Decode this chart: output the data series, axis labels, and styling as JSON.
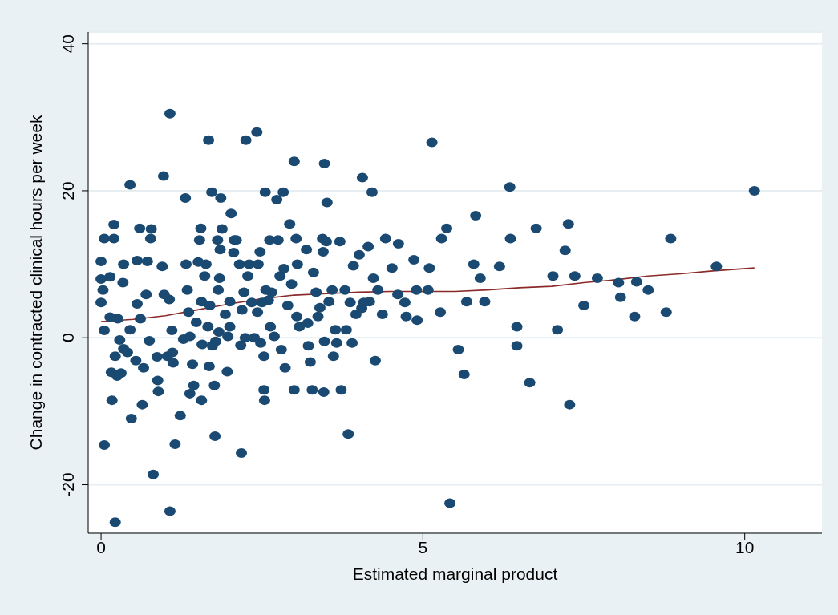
{
  "chart_data": {
    "type": "scatter",
    "xlabel": "Estimated marginal product",
    "ylabel": "Change in contracted clinical hours per week",
    "xlim": [
      -0.2,
      11.2
    ],
    "ylim": [
      -26.6,
      41.6
    ],
    "xticks": [
      0,
      5,
      10
    ],
    "yticks": [
      -20,
      0,
      20,
      40
    ],
    "grid": "y",
    "marker": "circle",
    "series": [
      {
        "color": "#1a4a72",
        "x": [
          0.05,
          0.22,
          0.0,
          0.0,
          0.05,
          0.03,
          0.0,
          0.05,
          0.2,
          0.2,
          0.14,
          0.14,
          0.26,
          0.16,
          0.17,
          0.22,
          0.25,
          0.31,
          0.29,
          0.35,
          0.41,
          0.34,
          0.35,
          0.45,
          0.47,
          0.45,
          0.54,
          0.56,
          0.56,
          0.61,
          0.6,
          0.64,
          0.66,
          0.7,
          0.72,
          0.75,
          0.77,
          0.78,
          0.81,
          0.87,
          0.88,
          0.89,
          0.95,
          0.97,
          0.98,
          1.03,
          1.06,
          1.07,
          1.07,
          1.1,
          1.11,
          1.12,
          1.15,
          1.23,
          1.28,
          1.31,
          1.32,
          1.34,
          1.36,
          1.38,
          1.38,
          1.42,
          1.44,
          1.48,
          1.51,
          1.53,
          1.55,
          1.56,
          1.56,
          1.57,
          1.61,
          1.63,
          1.66,
          1.67,
          1.68,
          1.69,
          1.72,
          1.73,
          1.76,
          1.77,
          1.78,
          1.81,
          1.82,
          1.83,
          1.84,
          1.85,
          1.86,
          1.88,
          1.93,
          1.96,
          1.97,
          2.0,
          2.0,
          2.02,
          2.06,
          2.07,
          2.1,
          2.15,
          2.17,
          2.18,
          2.19,
          2.22,
          2.24,
          2.25,
          2.28,
          2.3,
          2.34,
          2.38,
          2.42,
          2.43,
          2.44,
          2.47,
          2.48,
          2.5,
          2.53,
          2.53,
          2.54,
          2.55,
          2.56,
          2.6,
          2.62,
          2.63,
          2.65,
          2.69,
          2.73,
          2.75,
          2.78,
          2.8,
          2.83,
          2.84,
          2.86,
          2.9,
          2.93,
          2.96,
          3.0,
          3.0,
          3.03,
          3.04,
          3.05,
          3.08,
          3.19,
          3.21,
          3.22,
          3.25,
          3.28,
          3.3,
          3.34,
          3.37,
          3.4,
          3.44,
          3.45,
          3.46,
          3.47,
          3.47,
          3.5,
          3.51,
          3.54,
          3.59,
          3.61,
          3.64,
          3.66,
          3.71,
          3.73,
          3.79,
          3.81,
          3.84,
          3.87,
          3.9,
          3.92,
          3.96,
          4.01,
          4.05,
          4.06,
          4.08,
          4.15,
          4.17,
          4.21,
          4.23,
          4.26,
          4.3,
          4.37,
          4.42,
          4.52,
          4.61,
          4.62,
          4.72,
          4.74,
          4.86,
          4.9,
          4.91,
          5.08,
          5.1,
          5.14,
          5.27,
          5.29,
          5.37,
          5.42,
          5.55,
          5.64,
          5.68,
          5.79,
          5.82,
          5.89,
          5.96,
          6.19,
          6.35,
          6.36,
          6.46,
          6.46,
          6.66,
          6.76,
          7.02,
          7.09,
          7.21,
          7.26,
          7.28,
          7.36,
          7.5,
          7.71,
          8.04,
          8.07,
          8.29,
          8.32,
          8.5,
          8.78,
          8.85,
          9.56,
          10.15
        ],
        "values": [
          -14.6,
          -25.1,
          4.8,
          10.4,
          13.5,
          6.5,
          8.0,
          1.0,
          13.5,
          15.4,
          8.3,
          2.8,
          2.6,
          -4.7,
          -8.5,
          -2.5,
          -5.2,
          -4.8,
          -0.3,
          -1.5,
          -2.0,
          7.5,
          10.0,
          20.8,
          -11.0,
          1.1,
          -3.1,
          10.5,
          4.6,
          2.6,
          14.9,
          -9.1,
          -4.1,
          5.9,
          10.4,
          -0.4,
          13.5,
          14.8,
          -18.6,
          -2.6,
          -5.8,
          -7.3,
          9.7,
          22.0,
          5.9,
          -2.5,
          5.2,
          -23.6,
          30.5,
          1.0,
          -2.0,
          -3.4,
          -14.5,
          -10.6,
          -0.2,
          19.0,
          10.0,
          6.5,
          3.5,
          0.2,
          -7.6,
          -3.6,
          -6.5,
          2.1,
          10.3,
          13.3,
          14.9,
          4.9,
          -8.5,
          -0.9,
          8.4,
          10.0,
          1.5,
          26.9,
          -3.9,
          4.4,
          19.8,
          -1.1,
          -6.5,
          -13.4,
          -0.5,
          13.3,
          6.5,
          0.8,
          8.1,
          12.0,
          19.0,
          14.8,
          3.2,
          -4.6,
          0.2,
          4.9,
          1.5,
          16.9,
          11.6,
          13.3,
          13.3,
          10.0,
          -1.0,
          -15.7,
          3.8,
          6.2,
          0,
          26.9,
          8.4,
          10.0,
          4.8,
          0,
          28.0,
          3.5,
          10.0,
          11.7,
          -0.7,
          4.8,
          -2.5,
          -7.1,
          -8.5,
          19.8,
          6.5,
          5.1,
          13.3,
          1.5,
          6.2,
          0.2,
          18.8,
          13.3,
          8.4,
          -1.6,
          19.8,
          9.4,
          -4.1,
          4.4,
          15.5,
          7.3,
          24.0,
          -7.1,
          13.5,
          2.9,
          10.0,
          1.5,
          12.0,
          2.0,
          -1.1,
          -3.3,
          -7.1,
          8.9,
          6.2,
          2.9,
          4.1,
          13.5,
          11.7,
          -7.4,
          23.7,
          -0.5,
          13.1,
          18.4,
          4.9,
          6.5,
          -2.5,
          1.1,
          -0.7,
          13.1,
          -7.1,
          6.5,
          1.1,
          -13.1,
          4.8,
          -0.7,
          9.8,
          3.2,
          11.3,
          4.0,
          21.8,
          4.8,
          12.4,
          4.9,
          19.8,
          8.1,
          -3.1,
          6.5,
          3.2,
          13.5,
          9.5,
          5.9,
          12.8,
          4.8,
          2.9,
          10.6,
          6.5,
          2.4,
          6.5,
          9.5,
          26.6,
          3.5,
          13.5,
          14.9,
          -22.5,
          -1.6,
          -5.0,
          4.9,
          10.0,
          16.6,
          8.1,
          4.9,
          9.7,
          20.5,
          13.5,
          1.5,
          -1.1,
          -6.1,
          14.9,
          8.4,
          1.1,
          11.9,
          15.5,
          -9.1,
          8.4,
          4.4,
          8.1,
          7.5,
          5.5,
          2.9,
          7.6,
          6.5,
          3.5,
          13.5,
          9.7,
          20.0
        ]
      },
      {
        "type": "line",
        "color": "#8b2a2a",
        "marker": "none",
        "x": [
          0,
          0.5,
          1,
          1.5,
          2,
          2.5,
          3,
          3.5,
          4,
          4.5,
          5,
          5.5,
          6,
          6.5,
          7,
          7.5,
          8,
          8.5,
          9,
          9.5,
          10.15
        ],
        "values": [
          2.2,
          2.5,
          3.0,
          3.8,
          4.6,
          5.3,
          5.8,
          6.0,
          6.2,
          6.3,
          6.3,
          6.3,
          6.5,
          6.8,
          7.0,
          7.5,
          7.9,
          8.4,
          8.7,
          9.1,
          9.5
        ]
      }
    ]
  }
}
